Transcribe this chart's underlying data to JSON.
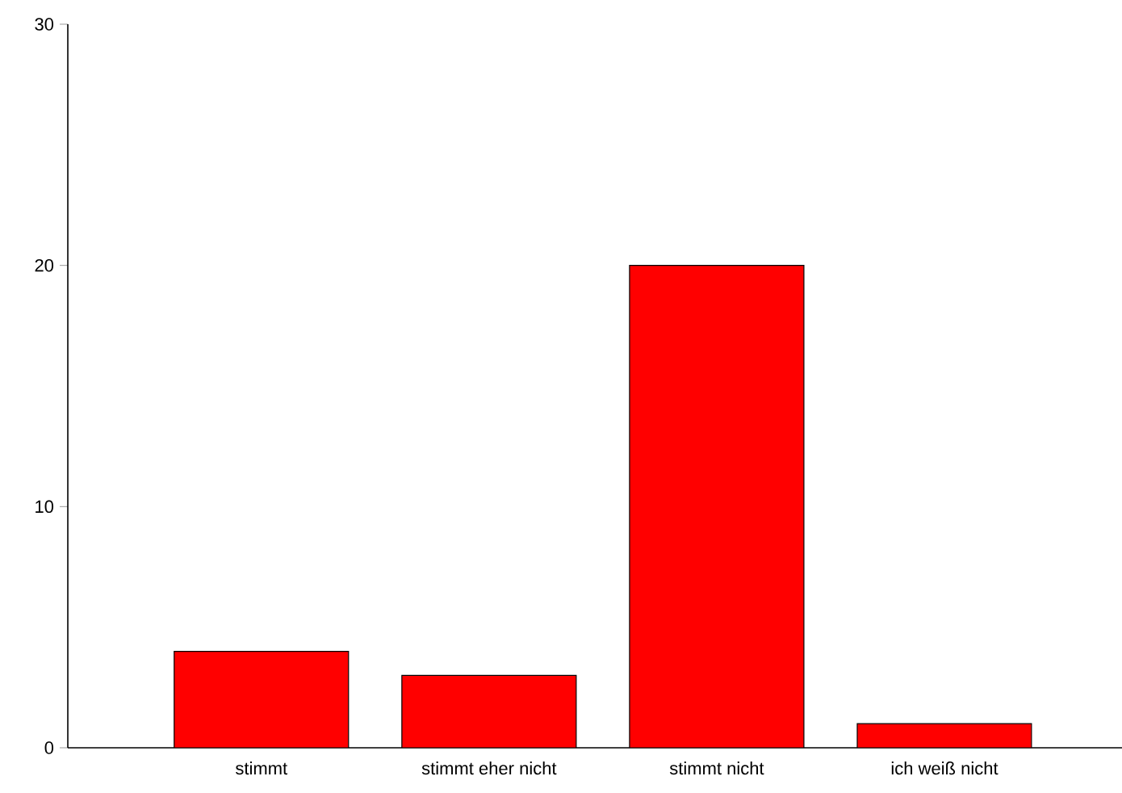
{
  "chart_data": {
    "type": "bar",
    "categories": [
      "stimmt",
      "stimmt eher nicht",
      "stimmt nicht",
      "ich weiß nicht"
    ],
    "values": [
      4,
      3,
      20,
      1
    ],
    "color": "#ff0000",
    "ylim": [
      0,
      30
    ],
    "yticks": [
      0,
      10,
      20,
      30
    ]
  }
}
